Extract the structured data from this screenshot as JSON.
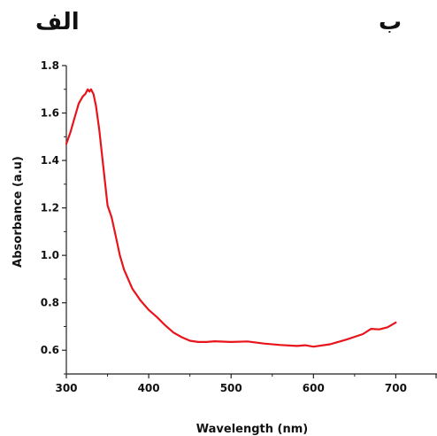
{
  "panel_labels": {
    "left": "الف",
    "right": "ب"
  },
  "colors": {
    "series": "#e8141b",
    "axis": "#222222"
  },
  "chart_data": {
    "type": "line",
    "title": "",
    "xlabel": "Wavelength (nm)",
    "ylabel": "Absorbance (a.u)",
    "xlim": [
      300,
      750
    ],
    "ylim": [
      0.5,
      1.8
    ],
    "xticks": [
      "300",
      "400",
      "500",
      "600",
      "700"
    ],
    "yticks": [
      "0.6",
      "0.8",
      "1.0",
      "1.2",
      "1.4",
      "1.6",
      "1.8"
    ],
    "grid": false,
    "legend": "none",
    "series": [
      {
        "x": [
          300,
          305,
          310,
          315,
          320,
          323,
          326,
          328,
          330,
          333,
          336,
          340,
          345,
          350,
          355,
          360,
          365,
          370,
          380,
          390,
          400,
          410,
          420,
          430,
          440,
          450,
          460,
          470,
          480,
          500,
          520,
          540,
          560,
          580,
          590,
          600,
          620,
          640,
          660,
          670,
          680,
          690,
          700
        ],
        "y": [
          1.47,
          1.52,
          1.58,
          1.64,
          1.67,
          1.68,
          1.7,
          1.69,
          1.7,
          1.68,
          1.63,
          1.53,
          1.37,
          1.21,
          1.16,
          1.08,
          1.0,
          0.94,
          0.86,
          0.81,
          0.77,
          0.74,
          0.705,
          0.675,
          0.655,
          0.64,
          0.635,
          0.635,
          0.638,
          0.635,
          0.637,
          0.628,
          0.622,
          0.618,
          0.621,
          0.615,
          0.625,
          0.645,
          0.668,
          0.69,
          0.688,
          0.697,
          0.717
        ]
      }
    ]
  }
}
